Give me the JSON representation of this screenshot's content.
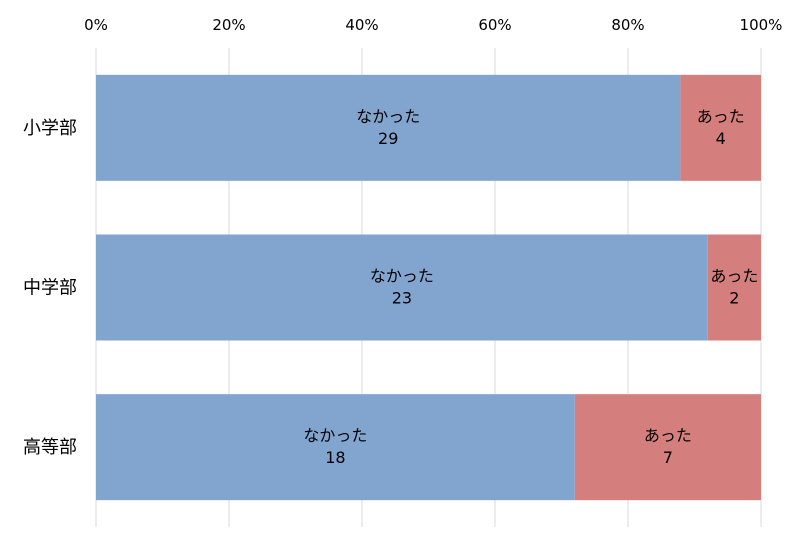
{
  "chart_data": {
    "type": "bar",
    "orientation": "horizontal",
    "stacked": "percent",
    "categories": [
      "小学部",
      "中学部",
      "高等部"
    ],
    "series": [
      {
        "name": "なかった",
        "values": [
          29,
          23,
          18
        ],
        "color": "#82a5cf"
      },
      {
        "name": "あった",
        "values": [
          4,
          2,
          7
        ],
        "color": "#d47f7d"
      }
    ],
    "x_ticks": [
      "0%",
      "20%",
      "40%",
      "60%",
      "80%",
      "100%"
    ],
    "xlim": [
      0,
      100
    ],
    "grid": true,
    "legend": "none",
    "data_labels": "series name and value inside each segment"
  }
}
